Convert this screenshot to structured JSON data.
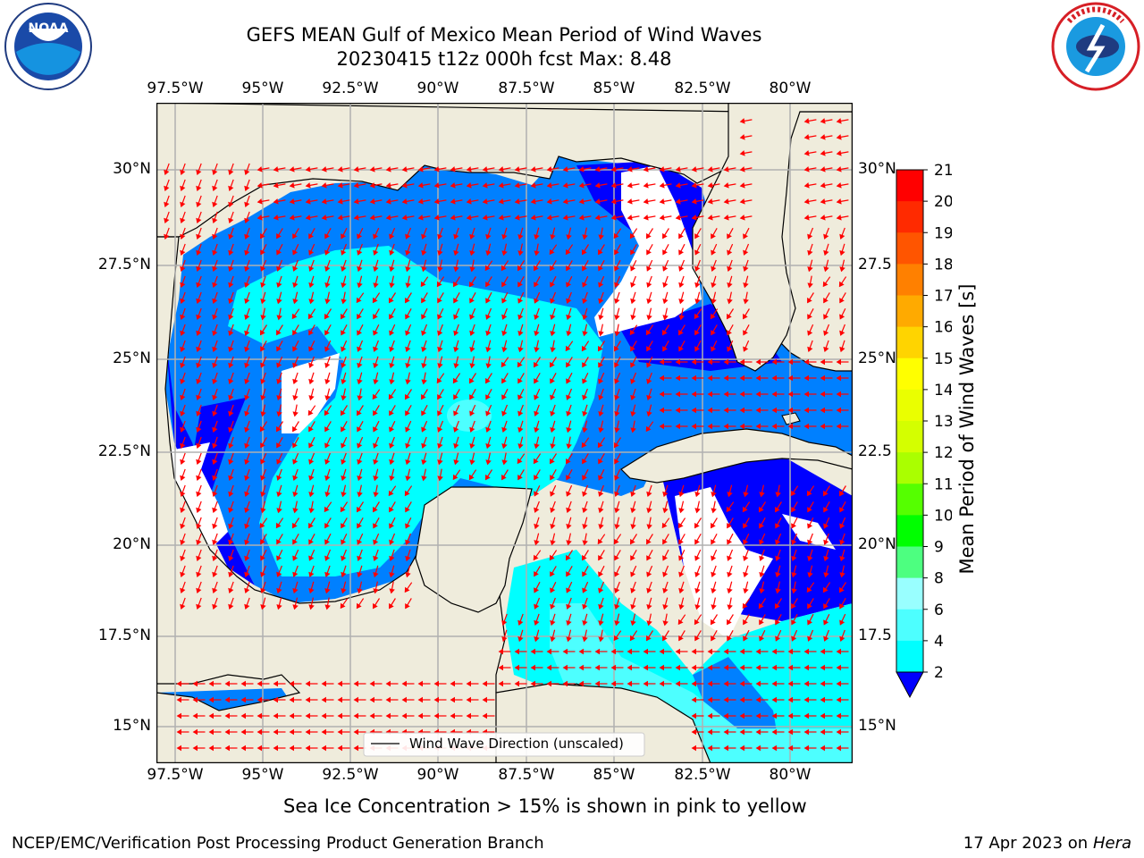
{
  "header": {
    "title_line1": "GEFS MEAN Gulf of Mexico Mean Period of Wind Waves",
    "title_line2": "20230415 t12z 000h fcst   Max: 8.48"
  },
  "logos": {
    "left": {
      "name": "noaa-logo",
      "text": "NOAA",
      "ring_text": "NATIONAL OCEANIC AND ATMOSPHERIC ADMINISTRATION · U.S. DEPARTMENT OF COMMERCE"
    },
    "right": {
      "name": "nws-logo",
      "ring_text": "NATIONAL WEATHER SERVICE"
    }
  },
  "map": {
    "lon_ticks": [
      "97.5°W",
      "95°W",
      "92.5°W",
      "90°W",
      "87.5°W",
      "85°W",
      "82.5°W",
      "80°W"
    ],
    "lat_ticks_left": [
      "30°N",
      "27.5°N",
      "25°N",
      "22.5°N",
      "20°N",
      "17.5°N",
      "15°N"
    ],
    "lat_ticks_right": [
      "30°N",
      "27.5",
      "25°N",
      "22.5",
      "20°N",
      "17.5",
      "15°N"
    ],
    "legend_label": "Wind Wave Direction (unscaled)",
    "colors": {
      "land": "#efecdc",
      "ocean_white": "#ffffff",
      "band_2_4": "#0080ff",
      "band_0_2": "#0000ff",
      "band_4_6": "#00ffff",
      "band_6_8": "#4dfcff",
      "arrows": "#ff0000",
      "grid": "#b0b0b0"
    }
  },
  "colorbar": {
    "label": "Mean Period of Wind Waves [s]",
    "ticks": [
      "21",
      "20",
      "19",
      "18",
      "17",
      "16",
      "15",
      "14",
      "13",
      "12",
      "11",
      "10",
      "9",
      "8",
      "6",
      "4",
      "2"
    ],
    "band_colors": [
      "#ff0000",
      "#ff2a00",
      "#ff5500",
      "#ff8000",
      "#ffaa00",
      "#ffd400",
      "#ffff00",
      "#eaff00",
      "#d4ff00",
      "#aaff00",
      "#55ff00",
      "#00ff00",
      "#4dff80",
      "#99ffff",
      "#4dffff",
      "#00ffff",
      "#0080ff",
      "#0000ff"
    ]
  },
  "subtitle": "Sea Ice Concentration > 15% is shown in pink to yellow",
  "footer": {
    "left": "NCEP/EMC/Verification Post Processing Product Generation Branch",
    "right_date": "17 Apr 2023 on ",
    "right_host": "Hera"
  }
}
